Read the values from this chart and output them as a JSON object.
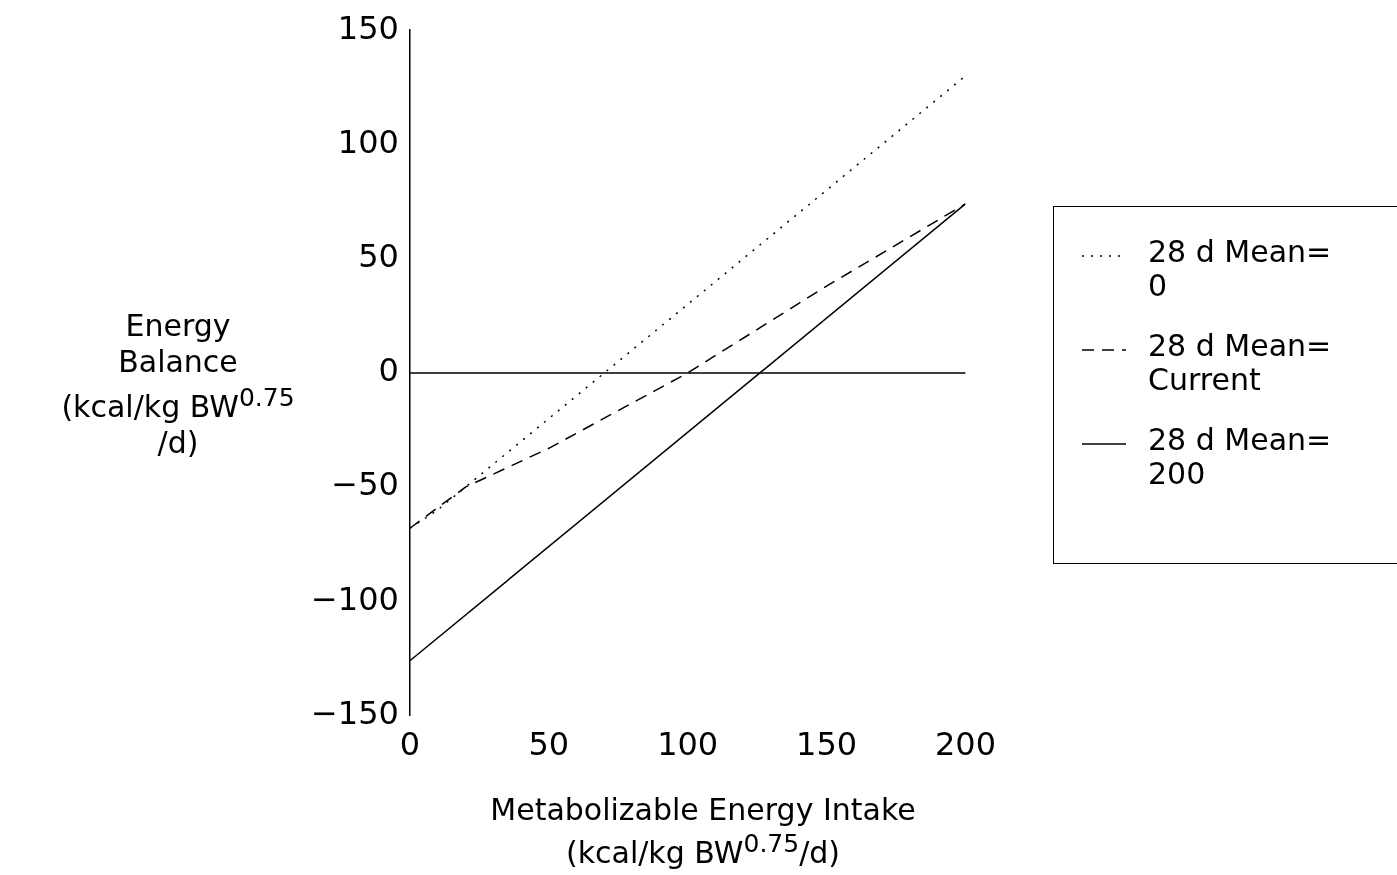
{
  "chart_data": {
    "type": "line",
    "xlabel": "Metabolizable Energy Intake\n(kcal/kg BW$^{0.75}$/d)",
    "ylabel": "Energy\nBalance\n(kcal/kg BW$^{0.75}$\n/d)",
    "xlim": [
      0,
      200
    ],
    "xticks": [
      0,
      50,
      100,
      150,
      200
    ],
    "ylim": [
      -150,
      150
    ],
    "yticks": [
      -150,
      -100,
      -50,
      0,
      50,
      100,
      150
    ],
    "grid": false,
    "ref_lines": [
      {
        "axis": "y",
        "value": 0,
        "color": "#000000",
        "line_style": "solid"
      }
    ],
    "legend": "right",
    "marker": "none",
    "series": [
      {
        "name": "28 d Mean=\n0",
        "color": "#000000",
        "line_style": "dotted",
        "x": [
          0,
          10,
          30,
          70,
          100,
          150,
          200
        ],
        "values": [
          -68,
          -60,
          -40,
          0,
          30,
          80,
          130
        ]
      },
      {
        "name": "28 d Mean=\nCurrent",
        "color": "#000000",
        "line_style": "dashed",
        "x": [
          0,
          20,
          50,
          100,
          150,
          200
        ],
        "values": [
          -68,
          -50,
          -33,
          0,
          38,
          74
        ]
      },
      {
        "name": "28 d Mean=\n200",
        "color": "#000000",
        "line_style": "solid",
        "x": [
          0,
          126,
          200
        ],
        "values": [
          -126,
          0,
          74
        ]
      }
    ]
  }
}
